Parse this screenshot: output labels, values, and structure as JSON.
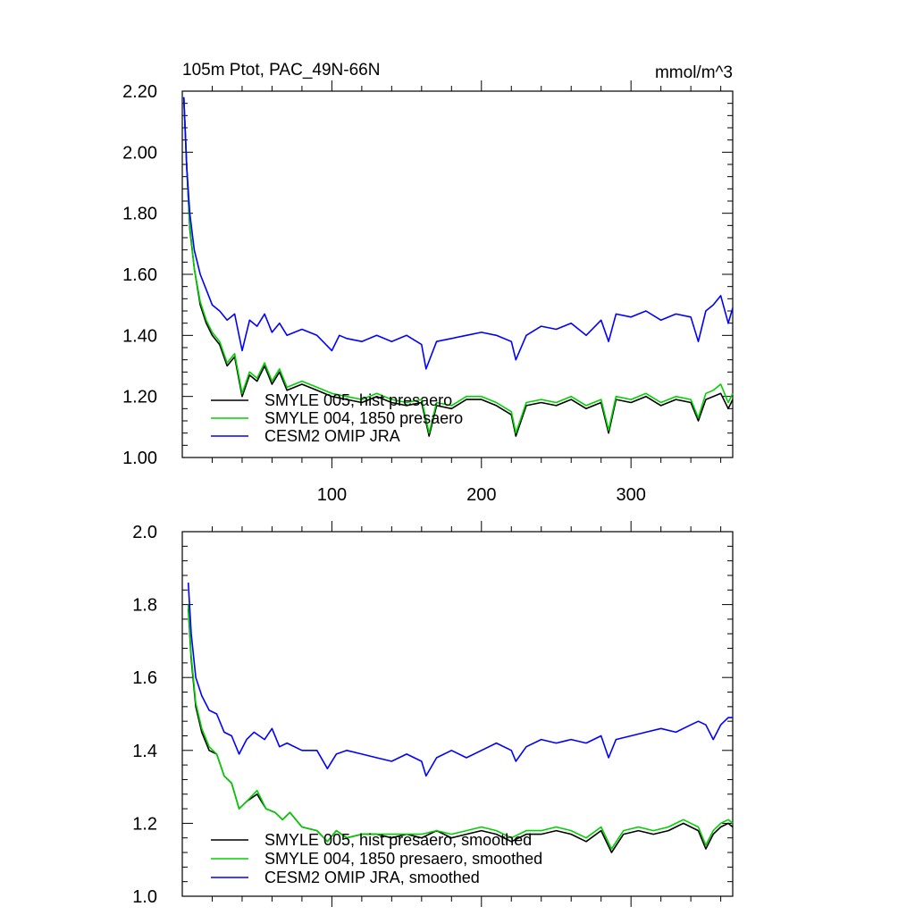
{
  "figure": {
    "title_left": "105m Ptot, PAC_49N-66N",
    "title_right": "mmol/m^3"
  },
  "chart_data": [
    {
      "type": "line",
      "panel": "top",
      "x_range": [
        0,
        368
      ],
      "ylim": [
        1.0,
        2.2
      ],
      "yticks": [
        "1.00",
        "1.20",
        "1.40",
        "1.60",
        "1.80",
        "2.00",
        "2.20"
      ],
      "ytick_values": [
        1.0,
        1.2,
        1.4,
        1.6,
        1.8,
        2.0,
        2.2
      ],
      "xticks": [
        "100",
        "200",
        "300"
      ],
      "xtick_values": [
        100,
        200,
        300
      ],
      "xtick_labels_shown": true,
      "legend_placement": "bottom-left",
      "series": [
        {
          "name": "SMYLE 005, hist presaero",
          "color": "#000000",
          "x": [
            1,
            3,
            5,
            8,
            12,
            16,
            20,
            25,
            30,
            35,
            40,
            45,
            50,
            55,
            60,
            65,
            70,
            80,
            90,
            100,
            110,
            120,
            130,
            140,
            150,
            160,
            165,
            170,
            180,
            190,
            200,
            210,
            220,
            223,
            230,
            240,
            250,
            260,
            270,
            280,
            285,
            290,
            300,
            310,
            320,
            330,
            340,
            345,
            350,
            355,
            360,
            365,
            368
          ],
          "y": [
            2.18,
            1.95,
            1.75,
            1.62,
            1.5,
            1.44,
            1.4,
            1.37,
            1.3,
            1.33,
            1.2,
            1.27,
            1.25,
            1.3,
            1.24,
            1.28,
            1.22,
            1.24,
            1.22,
            1.2,
            1.19,
            1.18,
            1.2,
            1.18,
            1.17,
            1.18,
            1.07,
            1.17,
            1.16,
            1.19,
            1.19,
            1.17,
            1.14,
            1.07,
            1.17,
            1.18,
            1.17,
            1.19,
            1.16,
            1.18,
            1.08,
            1.19,
            1.18,
            1.2,
            1.17,
            1.19,
            1.18,
            1.12,
            1.19,
            1.2,
            1.21,
            1.16,
            1.19
          ]
        },
        {
          "name": "SMYLE 004, 1850 presaero",
          "color": "#00d000",
          "x": [
            1,
            3,
            5,
            8,
            12,
            16,
            20,
            25,
            30,
            35,
            40,
            45,
            50,
            55,
            60,
            65,
            70,
            80,
            90,
            100,
            110,
            120,
            130,
            140,
            150,
            160,
            165,
            170,
            180,
            190,
            200,
            210,
            220,
            223,
            230,
            240,
            250,
            260,
            270,
            280,
            285,
            290,
            300,
            310,
            320,
            330,
            340,
            345,
            350,
            355,
            360,
            365,
            368
          ],
          "y": [
            2.18,
            1.95,
            1.76,
            1.62,
            1.51,
            1.45,
            1.41,
            1.38,
            1.31,
            1.34,
            1.21,
            1.28,
            1.26,
            1.31,
            1.25,
            1.29,
            1.23,
            1.25,
            1.23,
            1.21,
            1.2,
            1.19,
            1.21,
            1.19,
            1.18,
            1.19,
            1.08,
            1.18,
            1.17,
            1.2,
            1.2,
            1.18,
            1.15,
            1.08,
            1.18,
            1.19,
            1.18,
            1.2,
            1.17,
            1.19,
            1.09,
            1.2,
            1.19,
            1.21,
            1.18,
            1.2,
            1.19,
            1.13,
            1.21,
            1.22,
            1.24,
            1.18,
            1.21
          ]
        },
        {
          "name": "CESM2 OMIP JRA",
          "color": "#0000ff",
          "x": [
            1,
            3,
            5,
            8,
            12,
            16,
            20,
            25,
            30,
            35,
            40,
            45,
            50,
            55,
            60,
            65,
            70,
            80,
            90,
            100,
            105,
            110,
            120,
            130,
            140,
            150,
            160,
            163,
            170,
            180,
            190,
            200,
            210,
            220,
            223,
            230,
            240,
            250,
            260,
            270,
            280,
            285,
            290,
            300,
            310,
            320,
            330,
            340,
            345,
            350,
            355,
            360,
            365,
            368
          ],
          "y": [
            2.18,
            1.95,
            1.8,
            1.68,
            1.6,
            1.55,
            1.5,
            1.48,
            1.45,
            1.47,
            1.35,
            1.45,
            1.43,
            1.47,
            1.41,
            1.44,
            1.4,
            1.42,
            1.4,
            1.35,
            1.4,
            1.39,
            1.38,
            1.4,
            1.38,
            1.4,
            1.37,
            1.29,
            1.38,
            1.39,
            1.4,
            1.41,
            1.4,
            1.38,
            1.32,
            1.4,
            1.43,
            1.42,
            1.44,
            1.4,
            1.45,
            1.38,
            1.47,
            1.46,
            1.48,
            1.45,
            1.47,
            1.46,
            1.38,
            1.48,
            1.5,
            1.53,
            1.44,
            1.49
          ]
        }
      ]
    },
    {
      "type": "line",
      "panel": "bottom",
      "x_range": [
        0,
        368
      ],
      "ylim": [
        1.0,
        2.0
      ],
      "yticks": [
        "1.0",
        "1.2",
        "1.4",
        "1.6",
        "1.8",
        "2.0"
      ],
      "ytick_values": [
        1.0,
        1.2,
        1.4,
        1.6,
        1.8,
        2.0
      ],
      "xtick_values": [
        100,
        200,
        300
      ],
      "xtick_labels_shown": false,
      "legend_placement": "bottom-left",
      "series": [
        {
          "name": "SMYLE 005, hist presaero, smoothed",
          "color": "#000000",
          "x": [
            4,
            6,
            9,
            13,
            18,
            23,
            28,
            33,
            38,
            43,
            50,
            56,
            62,
            67,
            72,
            80,
            90,
            97,
            103,
            110,
            120,
            130,
            140,
            150,
            160,
            170,
            180,
            190,
            200,
            210,
            220,
            230,
            240,
            250,
            260,
            270,
            280,
            287,
            295,
            305,
            315,
            325,
            335,
            345,
            350,
            355,
            360,
            365,
            368
          ],
          "y": [
            1.79,
            1.65,
            1.52,
            1.45,
            1.4,
            1.39,
            1.33,
            1.31,
            1.24,
            1.26,
            1.28,
            1.24,
            1.23,
            1.21,
            1.23,
            1.19,
            1.18,
            1.15,
            1.18,
            1.16,
            1.17,
            1.17,
            1.16,
            1.17,
            1.16,
            1.18,
            1.16,
            1.17,
            1.18,
            1.17,
            1.15,
            1.17,
            1.17,
            1.18,
            1.17,
            1.15,
            1.18,
            1.12,
            1.17,
            1.18,
            1.17,
            1.18,
            1.2,
            1.18,
            1.13,
            1.17,
            1.19,
            1.2,
            1.19
          ]
        },
        {
          "name": "SMYLE 004, 1850 presaero, smoothed",
          "color": "#00d000",
          "x": [
            4,
            6,
            9,
            13,
            18,
            23,
            28,
            33,
            38,
            43,
            50,
            56,
            62,
            67,
            72,
            80,
            90,
            97,
            103,
            110,
            120,
            130,
            140,
            150,
            160,
            170,
            180,
            190,
            200,
            210,
            220,
            230,
            240,
            250,
            260,
            270,
            280,
            287,
            295,
            305,
            315,
            325,
            335,
            345,
            350,
            355,
            360,
            365,
            368
          ],
          "y": [
            1.8,
            1.66,
            1.53,
            1.46,
            1.41,
            1.39,
            1.33,
            1.31,
            1.24,
            1.26,
            1.29,
            1.24,
            1.23,
            1.21,
            1.23,
            1.19,
            1.18,
            1.15,
            1.18,
            1.16,
            1.17,
            1.17,
            1.17,
            1.17,
            1.17,
            1.18,
            1.17,
            1.18,
            1.19,
            1.18,
            1.16,
            1.18,
            1.18,
            1.19,
            1.18,
            1.16,
            1.19,
            1.13,
            1.18,
            1.19,
            1.18,
            1.19,
            1.21,
            1.19,
            1.14,
            1.18,
            1.2,
            1.21,
            1.2
          ]
        },
        {
          "name": "CESM2 OMIP JRA, smoothed",
          "color": "#0000ff",
          "x": [
            4,
            6,
            9,
            13,
            18,
            23,
            28,
            33,
            38,
            43,
            48,
            55,
            60,
            65,
            70,
            80,
            90,
            97,
            103,
            110,
            120,
            130,
            140,
            150,
            160,
            163,
            170,
            180,
            190,
            200,
            210,
            220,
            223,
            230,
            240,
            250,
            260,
            270,
            280,
            285,
            290,
            300,
            310,
            320,
            330,
            340,
            345,
            350,
            355,
            360,
            365,
            368
          ],
          "y": [
            1.86,
            1.72,
            1.6,
            1.55,
            1.51,
            1.5,
            1.45,
            1.44,
            1.39,
            1.43,
            1.45,
            1.43,
            1.46,
            1.41,
            1.42,
            1.4,
            1.4,
            1.35,
            1.39,
            1.4,
            1.39,
            1.38,
            1.37,
            1.39,
            1.37,
            1.33,
            1.38,
            1.4,
            1.38,
            1.4,
            1.42,
            1.4,
            1.37,
            1.41,
            1.43,
            1.42,
            1.43,
            1.42,
            1.44,
            1.38,
            1.43,
            1.44,
            1.45,
            1.46,
            1.45,
            1.47,
            1.48,
            1.47,
            1.43,
            1.47,
            1.49,
            1.49
          ]
        }
      ]
    }
  ]
}
